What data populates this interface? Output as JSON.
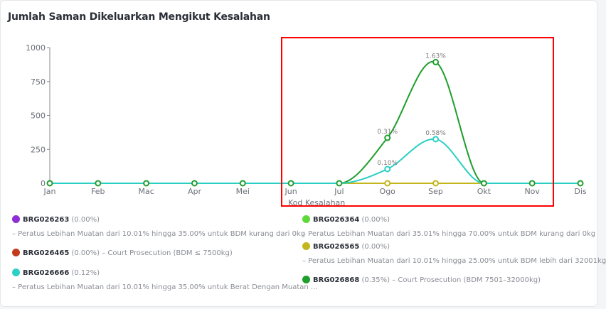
{
  "chart_data": {
    "type": "line",
    "title": "Jumlah Saman Dikeluarkan Mengikut Kesalahan",
    "xlabel": "Kod Kesalahan",
    "ylabel": "",
    "categories": [
      "Jan",
      "Feb",
      "Mac",
      "Apr",
      "Mei",
      "Jun",
      "Jul",
      "Ogo",
      "Sep",
      "Okt",
      "Nov",
      "Dis"
    ],
    "ylim": [
      0,
      1000
    ],
    "yticks": [
      0,
      250,
      500,
      750,
      1000
    ],
    "grid": false,
    "series": [
      {
        "name": "BRG026263",
        "percent": "(0.00%)",
        "desc": "– Peratus Lebihan Muatan dari 10.01% hingga 35.00% untuk BDM kurang dari 0kg",
        "color": "#8e2fd6",
        "values": [
          0,
          0,
          0,
          0,
          0,
          0,
          0,
          0,
          0,
          0,
          0,
          0
        ],
        "labels": {}
      },
      {
        "name": "BRG026364",
        "percent": "(0.00%)",
        "desc": "– Peratus Lebihan Muatan dari 35.01% hingga 70.00% untuk BDM kurang dari 0kg",
        "color": "#5fd93a",
        "values": [
          0,
          0,
          0,
          0,
          0,
          0,
          0,
          0,
          0,
          0,
          0,
          0
        ],
        "labels": {}
      },
      {
        "name": "BRG026465",
        "percent": "(0.00%)",
        "desc": "– Court Prosecution (BDM ≤ 7500kg)",
        "color": "#c33a1c",
        "values": [
          0,
          0,
          0,
          0,
          0,
          0,
          0,
          0,
          0,
          0,
          0,
          0
        ],
        "labels": {}
      },
      {
        "name": "BRG026565",
        "percent": "(0.00%)",
        "desc": "– Peratus Lebihan Muatan dari 10.01% hingga 25.00% untuk BDM lebih dari 32001kg",
        "color": "#c4b51f",
        "values": [
          0,
          0,
          0,
          0,
          0,
          0,
          0,
          0,
          0,
          0,
          0,
          0
        ],
        "labels": {}
      },
      {
        "name": "BRG026666",
        "percent": "(0.12%)",
        "desc": "– Peratus Lebihan Muatan dari 10.01% hingga 35.00% untuk Berat Dengan Muatan ...",
        "color": "#2ccfc4",
        "values": [
          0,
          0,
          0,
          0,
          0,
          0,
          0,
          105,
          325,
          0,
          0,
          0
        ],
        "labels": {
          "7": "0.10%",
          "8": "0.58%"
        }
      },
      {
        "name": "BRG026868",
        "percent": "(0.35%)",
        "desc": "– Court Prosecution (BDM 7501–32000kg)",
        "color": "#1f9e2c",
        "values": [
          0,
          0,
          0,
          0,
          0,
          0,
          0,
          335,
          893,
          0,
          0,
          0
        ],
        "labels": {
          "7": "0.31%",
          "8": "1.63%"
        }
      }
    ]
  }
}
